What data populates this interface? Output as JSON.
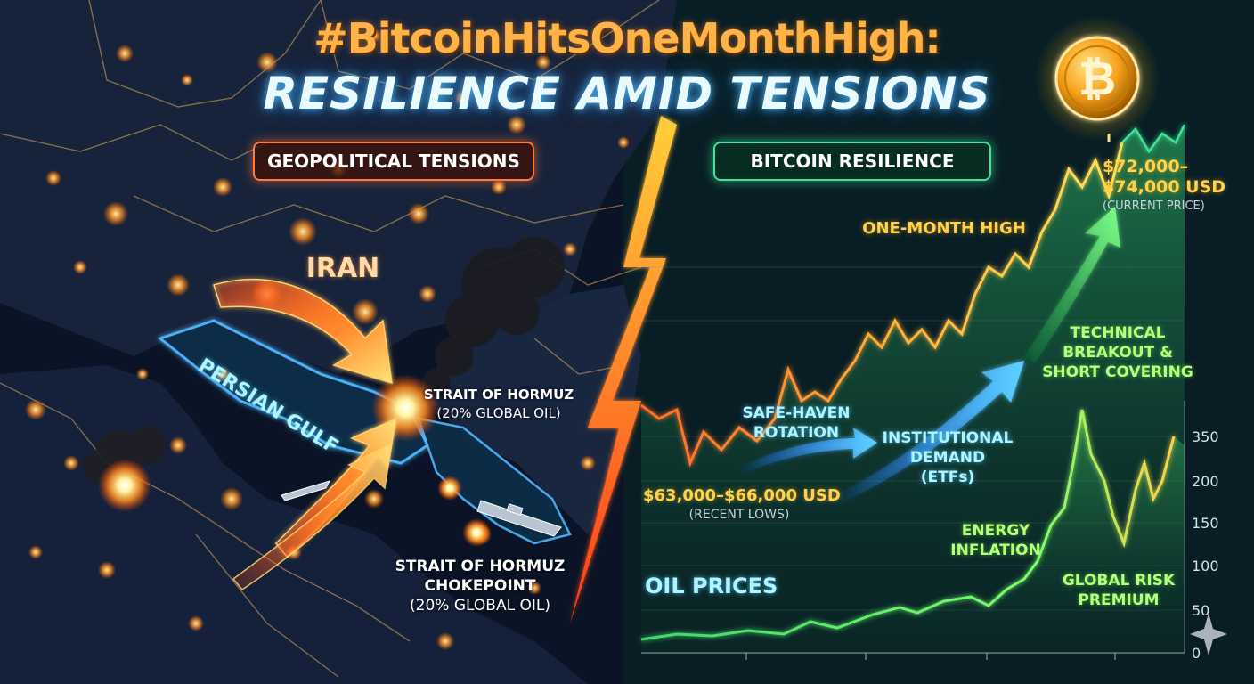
{
  "header": {
    "title_hashtag": "#BitcoinHitsOneMonthHigh:",
    "title_main": "RESILIENCE AMID TENSIONS"
  },
  "panels": {
    "left_label": "GEOPOLITICAL TENSIONS",
    "right_label": "BITCOIN RESILIENCE"
  },
  "map": {
    "country": "IRAN",
    "gulf": "PERSIAN GULF",
    "strait_line1": "STRAIT OF HORMUZ",
    "strait_line2": "(20% GLOBAL OIL)",
    "choke_line1": "STRAIT OF HORMUZ",
    "choke_line2": "CHOKEPOINT",
    "choke_line3": "(20% GLOBAL OIL)"
  },
  "bitcoin": {
    "high_label": "ONE-MONTH HIGH",
    "price_line1": "$72,000–",
    "price_line2": "$74,000 USD",
    "price_note": "(CURRENT PRICE)",
    "low_price": "$63,000–$66,000 USD",
    "low_note": "(RECENT LOWS)",
    "driver1_line1": "SAFE-HAVEN",
    "driver1_line2": "ROTATION",
    "driver2_line1": "INSTITUTIONAL",
    "driver2_line2": "DEMAND",
    "driver2_line3": "(ETFs)",
    "driver3_line1": "TECHNICAL",
    "driver3_line2": "BREAKOUT &",
    "driver3_line3": "SHORT COVERING"
  },
  "oil": {
    "label": "OIL PRICES",
    "energy_line1": "ENERGY",
    "energy_line2": "INFLATION",
    "risk_line1": "GLOBAL RISK",
    "risk_line2": "PREMIUM",
    "axis_ticks": [
      "350",
      "200",
      "150",
      "100",
      "50",
      "0"
    ]
  },
  "colors": {
    "accent_orange": "#ff7a3d",
    "accent_green": "#3fe39a",
    "bitcoin_gold": "#f7a21b",
    "background": "#050a16"
  },
  "icons": {
    "coin": "bitcoin-coin-icon",
    "sparkle": "sparkle-icon"
  }
}
